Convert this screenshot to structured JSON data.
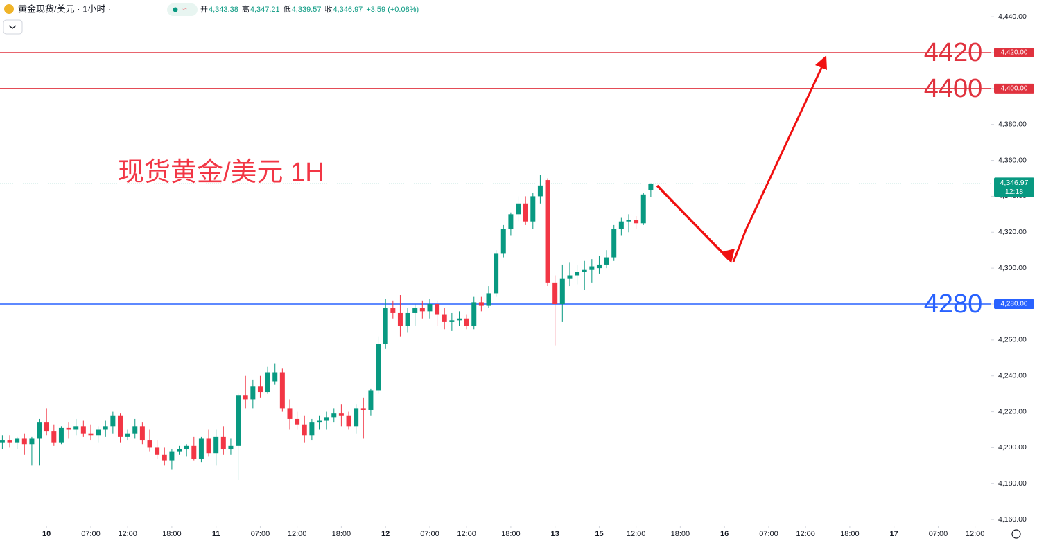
{
  "header": {
    "symbol": "黄金现货/美元 · 1小时 ·",
    "quote": [
      {
        "label": "开",
        "value": "4,343.38"
      },
      {
        "label": "高",
        "value": "4,347.21"
      },
      {
        "label": "低",
        "value": "4,339.57"
      },
      {
        "label": "收",
        "value": "4,346.97"
      }
    ],
    "change": "+3.59 (+0.08%)"
  },
  "chart_data": {
    "type": "candlestick",
    "title": "现货黄金/美元 1H",
    "up_color": "#089981",
    "down_color": "#f23645",
    "x": [
      0,
      1,
      2,
      3,
      4,
      5,
      6,
      7,
      8,
      9,
      10,
      11,
      12,
      13,
      14,
      15,
      16,
      17,
      18,
      19,
      20,
      21,
      22,
      23,
      24,
      25,
      26,
      27,
      28,
      29,
      30,
      31,
      32,
      33,
      34,
      35,
      36,
      37,
      38,
      39,
      40,
      41,
      42,
      43,
      44,
      45,
      46,
      47,
      48,
      49,
      50,
      51,
      52,
      53,
      54,
      55,
      56,
      57,
      58,
      59,
      60,
      61,
      62,
      63,
      64,
      65,
      66,
      67,
      68,
      69,
      70,
      71,
      72,
      73,
      74,
      75,
      76,
      77,
      78,
      79,
      80,
      81,
      82,
      83,
      84,
      85,
      86,
      87,
      88
    ],
    "open": [
      4203,
      4204,
      4203,
      4205,
      4202,
      4205,
      4214,
      4209,
      4203,
      4211,
      4210,
      4212,
      4208,
      4207,
      4210,
      4212,
      4218,
      4206,
      4208,
      4212,
      4204,
      4200,
      4196,
      4193,
      4198,
      4199,
      4201,
      4194,
      4205,
      4197,
      4206,
      4199,
      4201,
      4229,
      4227,
      4234,
      4231,
      4237,
      4242,
      4222,
      4216,
      4213,
      4207,
      4214,
      4215,
      4217,
      4219,
      4218,
      4212,
      4222,
      4221,
      4232,
      4258,
      4278,
      4275,
      4268,
      4275,
      4278,
      4276,
      4280,
      4274,
      4270,
      4271,
      4272,
      4268,
      4281,
      4279,
      4286,
      4308,
      4322,
      4330,
      4336,
      4326,
      4340,
      4349,
      4292,
      4280,
      4294,
      4296,
      4298,
      4299,
      4300,
      4302,
      4306,
      4322,
      4326,
      4327,
      4325,
      4343.38
    ],
    "high": [
      4207,
      4207,
      4206,
      4208,
      4206,
      4216,
      4222,
      4213,
      4212,
      4214,
      4216,
      4215,
      4213,
      4212,
      4215,
      4220,
      4219,
      4210,
      4216,
      4214,
      4210,
      4204,
      4200,
      4199,
      4201,
      4202,
      4206,
      4206,
      4210,
      4210,
      4212,
      4205,
      4230,
      4240,
      4238,
      4240,
      4245,
      4247,
      4244,
      4227,
      4220,
      4218,
      4216,
      4218,
      4220,
      4222,
      4224,
      4220,
      4224,
      4228,
      4233,
      4262,
      4283,
      4282,
      4285,
      4278,
      4280,
      4282,
      4283,
      4282,
      4278,
      4275,
      4276,
      4274,
      4284,
      4284,
      4290,
      4310,
      4324,
      4331,
      4340,
      4340,
      4342,
      4352,
      4350,
      4296,
      4302,
      4303,
      4302,
      4304,
      4305,
      4307,
      4310,
      4324,
      4328,
      4330,
      4329,
      4342,
      4347.21
    ],
    "low": [
      4199,
      4200,
      4199,
      4196,
      4190,
      4190,
      4207,
      4201,
      4202,
      4205,
      4207,
      4206,
      4204,
      4203,
      4206,
      4208,
      4203,
      4204,
      4205,
      4202,
      4198,
      4194,
      4190,
      4188,
      4196,
      4195,
      4193,
      4192,
      4195,
      4190,
      4196,
      4196,
      4182,
      4222,
      4222,
      4228,
      4230,
      4235,
      4220,
      4210,
      4210,
      4203,
      4204,
      4210,
      4210,
      4214,
      4212,
      4210,
      4208,
      4205,
      4218,
      4230,
      4255,
      4272,
      4262,
      4264,
      4268,
      4272,
      4272,
      4268,
      4266,
      4265,
      4268,
      4266,
      4266,
      4276,
      4278,
      4284,
      4306,
      4318,
      4326,
      4324,
      4322,
      4336,
      4290,
      4257,
      4270,
      4290,
      4291,
      4288,
      4292,
      4297,
      4300,
      4304,
      4318,
      4320,
      4322,
      4324,
      4339.57
    ],
    "close": [
      4204,
      4203,
      4205,
      4202,
      4205,
      4214,
      4209,
      4203,
      4211,
      4210,
      4212,
      4208,
      4207,
      4210,
      4212,
      4218,
      4206,
      4208,
      4212,
      4204,
      4200,
      4196,
      4193,
      4198,
      4199,
      4201,
      4194,
      4205,
      4197,
      4206,
      4199,
      4201,
      4229,
      4227,
      4234,
      4231,
      4242,
      4242,
      4222,
      4216,
      4213,
      4207,
      4214,
      4215,
      4217,
      4219,
      4218,
      4212,
      4222,
      4221,
      4232,
      4258,
      4278,
      4275,
      4268,
      4275,
      4278,
      4276,
      4280,
      4274,
      4270,
      4271,
      4272,
      4268,
      4281,
      4279,
      4286,
      4308,
      4322,
      4330,
      4336,
      4326,
      4340,
      4346,
      4292,
      4280,
      4294,
      4296,
      4298,
      4299,
      4301,
      4302,
      4306,
      4322,
      4326,
      4327,
      4325,
      4341,
      4346.97
    ],
    "xlim": [
      -0.32,
      134.2
    ],
    "xticks": [
      {
        "value": 6,
        "label": "10"
      },
      {
        "value": 12,
        "label": "07:00"
      },
      {
        "value": 17,
        "label": "12:00"
      },
      {
        "value": 23,
        "label": "18:00"
      },
      {
        "value": 29,
        "label": "11"
      },
      {
        "value": 35,
        "label": "07:00"
      },
      {
        "value": 40,
        "label": "12:00"
      },
      {
        "value": 46,
        "label": "18:00"
      },
      {
        "value": 52,
        "label": "12"
      },
      {
        "value": 58,
        "label": "07:00"
      },
      {
        "value": 63,
        "label": "12:00"
      },
      {
        "value": 69,
        "label": "18:00"
      },
      {
        "value": 75,
        "label": "13"
      },
      {
        "value": 81,
        "label": "15"
      },
      {
        "value": 86,
        "label": "12:00"
      },
      {
        "value": 92,
        "label": "18:00"
      },
      {
        "value": 98,
        "label": "16"
      },
      {
        "value": 104,
        "label": "07:00"
      },
      {
        "value": 109,
        "label": "12:00"
      },
      {
        "value": 115,
        "label": "18:00"
      },
      {
        "value": 121,
        "label": "17"
      },
      {
        "value": 127,
        "label": "07:00"
      },
      {
        "value": 132,
        "label": "12:00"
      }
    ],
    "ylim": [
      4156.2,
      4449.3
    ],
    "yticks": [
      {
        "value": 4160,
        "label": "4,160.00"
      },
      {
        "value": 4180,
        "label": "4,180.00"
      },
      {
        "value": 4200,
        "label": "4,200.00"
      },
      {
        "value": 4220,
        "label": "4,220.00"
      },
      {
        "value": 4240,
        "label": "4,240.00"
      },
      {
        "value": 4260,
        "label": "4,260.00"
      },
      {
        "value": 4280,
        "label": "4,280.00"
      },
      {
        "value": 4300,
        "label": "4,300.00"
      },
      {
        "value": 4320,
        "label": "4,320.00"
      },
      {
        "value": 4340,
        "label": "4,340.00"
      },
      {
        "value": 4360,
        "label": "4,360.00"
      },
      {
        "value": 4380,
        "label": "4,380.00"
      },
      {
        "value": 4400,
        "label": "4,400.00"
      },
      {
        "value": 4420,
        "label": "4,420.00"
      },
      {
        "value": 4440,
        "label": "4,440.00"
      }
    ],
    "levels": [
      {
        "value": 4420,
        "label": "4,420.00",
        "color": "#e0323e"
      },
      {
        "value": 4400,
        "label": "4,400.00",
        "color": "#e0323e"
      },
      {
        "value": 4280,
        "label": "4,280.00",
        "color": "#2962ff"
      }
    ],
    "last_price": {
      "value": 4346.97,
      "label": "4,346.97",
      "countdown": "12:18",
      "color": "#089981"
    }
  }
}
